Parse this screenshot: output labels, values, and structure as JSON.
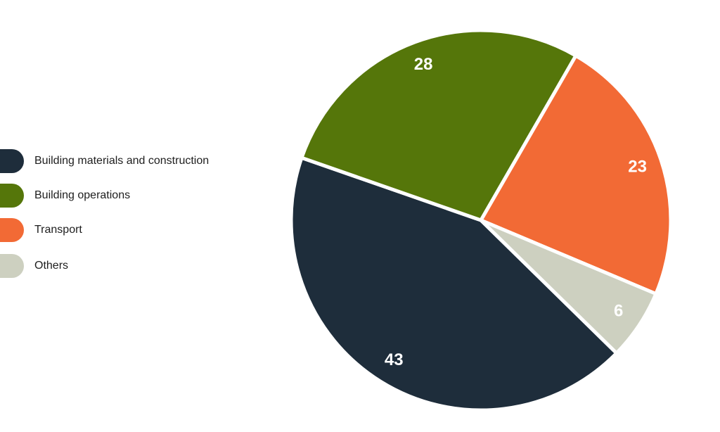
{
  "chart_data": {
    "type": "pie",
    "categories": [
      "Building materials and construction",
      "Building operations",
      "Transport",
      "Others"
    ],
    "values": [
      43,
      28,
      23,
      6
    ],
    "colors": [
      "#1e2d3b",
      "#55760a",
      "#f26a35",
      "#cdd0c0"
    ],
    "legend": "left"
  }
}
